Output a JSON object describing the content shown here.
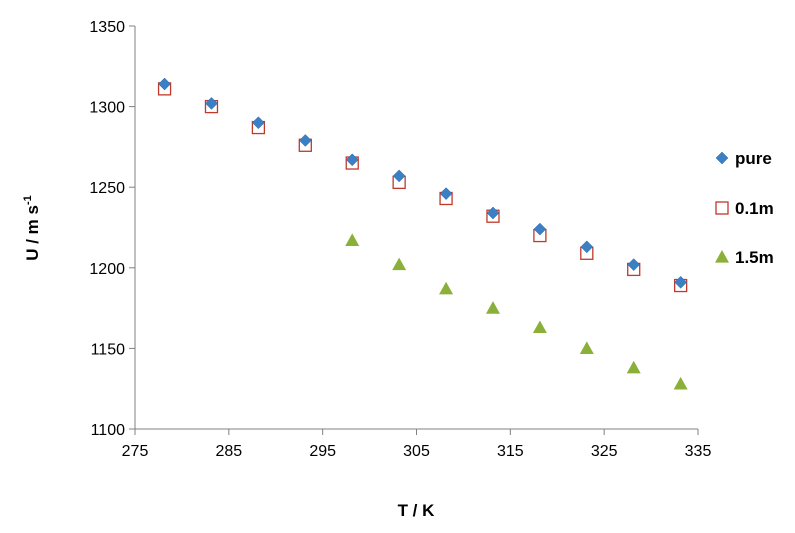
{
  "chart_data": {
    "type": "scatter",
    "xlabel": "T / K",
    "ylabel_main": "U / m s",
    "ylabel_sup": "-1",
    "xlim": [
      275,
      335
    ],
    "ylim": [
      1100,
      1350
    ],
    "xticks": [
      "275",
      "285",
      "295",
      "305",
      "315",
      "325",
      "335"
    ],
    "yticks": [
      "1100",
      "1150",
      "1200",
      "1250",
      "1300",
      "1350"
    ],
    "grid": false,
    "legend_position": "right",
    "series": [
      {
        "name": "pure",
        "marker": "diamond",
        "color": "#3b7fc4",
        "x": [
          278.15,
          283.15,
          288.15,
          293.15,
          298.15,
          303.15,
          308.15,
          313.15,
          318.15,
          323.15,
          328.15,
          333.15
        ],
        "y": [
          1314,
          1302,
          1290,
          1279,
          1267,
          1257,
          1246,
          1234,
          1224,
          1213,
          1202,
          1191
        ]
      },
      {
        "name": "0.1m",
        "marker": "open-square",
        "color": "#c0392b",
        "x": [
          278.15,
          283.15,
          288.15,
          293.15,
          298.15,
          303.15,
          308.15,
          313.15,
          318.15,
          323.15,
          328.15,
          333.15
        ],
        "y": [
          1311,
          1300,
          1287,
          1276,
          1265,
          1253,
          1243,
          1232,
          1220,
          1209,
          1199,
          1189
        ]
      },
      {
        "name": "1.5m",
        "marker": "triangle",
        "color": "#8bb03a",
        "x": [
          298.15,
          303.15,
          308.15,
          313.15,
          318.15,
          323.15,
          328.15,
          333.15
        ],
        "y": [
          1217,
          1202,
          1187,
          1175,
          1163,
          1150,
          1138,
          1128
        ]
      }
    ]
  }
}
